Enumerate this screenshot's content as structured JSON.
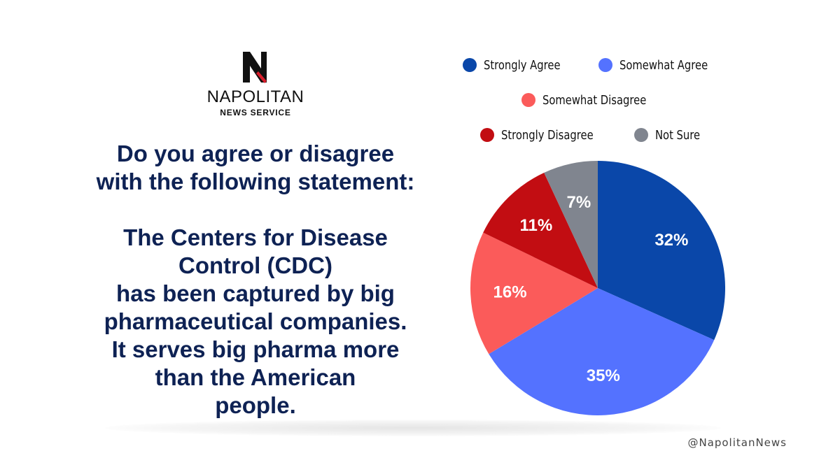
{
  "logo": {
    "name": "NAPOLITAN",
    "subtitle": "NEWS SERVICE",
    "mark_colors": {
      "letter": "#111111",
      "accent": "#d81e2c"
    }
  },
  "question": {
    "lines": [
      "Do you agree or disagree",
      "with the following statement:",
      "",
      "The Centers for Disease",
      "Control (CDC)",
      "has been captured by big",
      "pharmaceutical companies.",
      "It serves big pharma more",
      "than the American",
      "people."
    ]
  },
  "footer": {
    "handle": "@NapolitanNews"
  },
  "chart_data": {
    "type": "pie",
    "start": "12 o'clock, clockwise",
    "legend_placement": "top",
    "slices": [
      {
        "label": "Strongly Agree",
        "value": 32,
        "display": "32%",
        "color": "#0a47a9"
      },
      {
        "label": "Somewhat Agree",
        "value": 35,
        "display": "35%",
        "color": "#5472ff"
      },
      {
        "label": "Somewhat Disagree",
        "value": 16,
        "display": "16%",
        "color": "#fb5b5a"
      },
      {
        "label": "Strongly Disagree",
        "value": 11,
        "display": "11%",
        "color": "#c20d12"
      },
      {
        "label": "Not Sure",
        "value": 7,
        "display": "7%",
        "color": "#80858f"
      }
    ],
    "legend_rows": [
      [
        0,
        1
      ],
      [
        2
      ],
      [
        3,
        4
      ]
    ]
  }
}
